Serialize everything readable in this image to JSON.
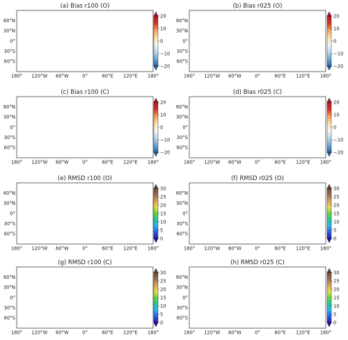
{
  "colors": {
    "bias": [
      "#2166ac",
      "#6fa8d1",
      "#bcdcec",
      "#f7f7f7",
      "#fde3a3",
      "#f6a15e",
      "#d73027",
      "#b2182b"
    ],
    "rmsd": [
      "#2a1a9c",
      "#2b5ce6",
      "#2bb5f0",
      "#22c59a",
      "#6dd33a",
      "#e9de4a",
      "#d8a25a",
      "#9a6b4f",
      "#6e4b3a"
    ]
  },
  "rows": [
    {
      "colorbar": {
        "type": "bias",
        "ticks": [
          "20",
          "10",
          "0",
          "−10",
          "−20"
        ]
      },
      "panels": [
        {
          "key": "a",
          "title": "(a) Bias r100 (O)",
          "coverage": "open-ocean"
        },
        {
          "key": "b",
          "title": "(b) Bias r025 (O)",
          "coverage": "open-ocean"
        }
      ]
    },
    {
      "colorbar": {
        "type": "bias",
        "ticks": [
          "20",
          "10",
          "0",
          "−10",
          "−20"
        ]
      },
      "panels": [
        {
          "key": "c",
          "title": "(c) Bias r100 (C)",
          "coverage": "coastal"
        },
        {
          "key": "d",
          "title": "(d) Bias r025 (C)",
          "coverage": "coastal"
        }
      ]
    },
    {
      "colorbar": {
        "type": "rmsd",
        "ticks": [
          "30",
          "25",
          "20",
          "15",
          "10",
          "5",
          "0"
        ]
      },
      "panels": [
        {
          "key": "e",
          "title": "(e) RMSD r100 (O)",
          "coverage": "open-ocean"
        },
        {
          "key": "f",
          "title": "(f) RMSD r025 (O)",
          "coverage": "open-ocean"
        }
      ]
    },
    {
      "colorbar": {
        "type": "rmsd",
        "ticks": [
          "30",
          "25",
          "20",
          "15",
          "10",
          "5",
          "0"
        ]
      },
      "panels": [
        {
          "key": "g",
          "title": "(g) RMSD r100 (C)",
          "coverage": "coastal"
        },
        {
          "key": "h",
          "title": "(h) RMSD r025 (C)",
          "coverage": "coastal"
        }
      ]
    }
  ],
  "axes": {
    "lat_labels": [
      "60°N",
      "30°N",
      "0°",
      "30°S",
      "60°S"
    ],
    "lon_labels": [
      "180°",
      "120°W",
      "60°W",
      "0°",
      "60°E",
      "120°E",
      "180°"
    ]
  }
}
